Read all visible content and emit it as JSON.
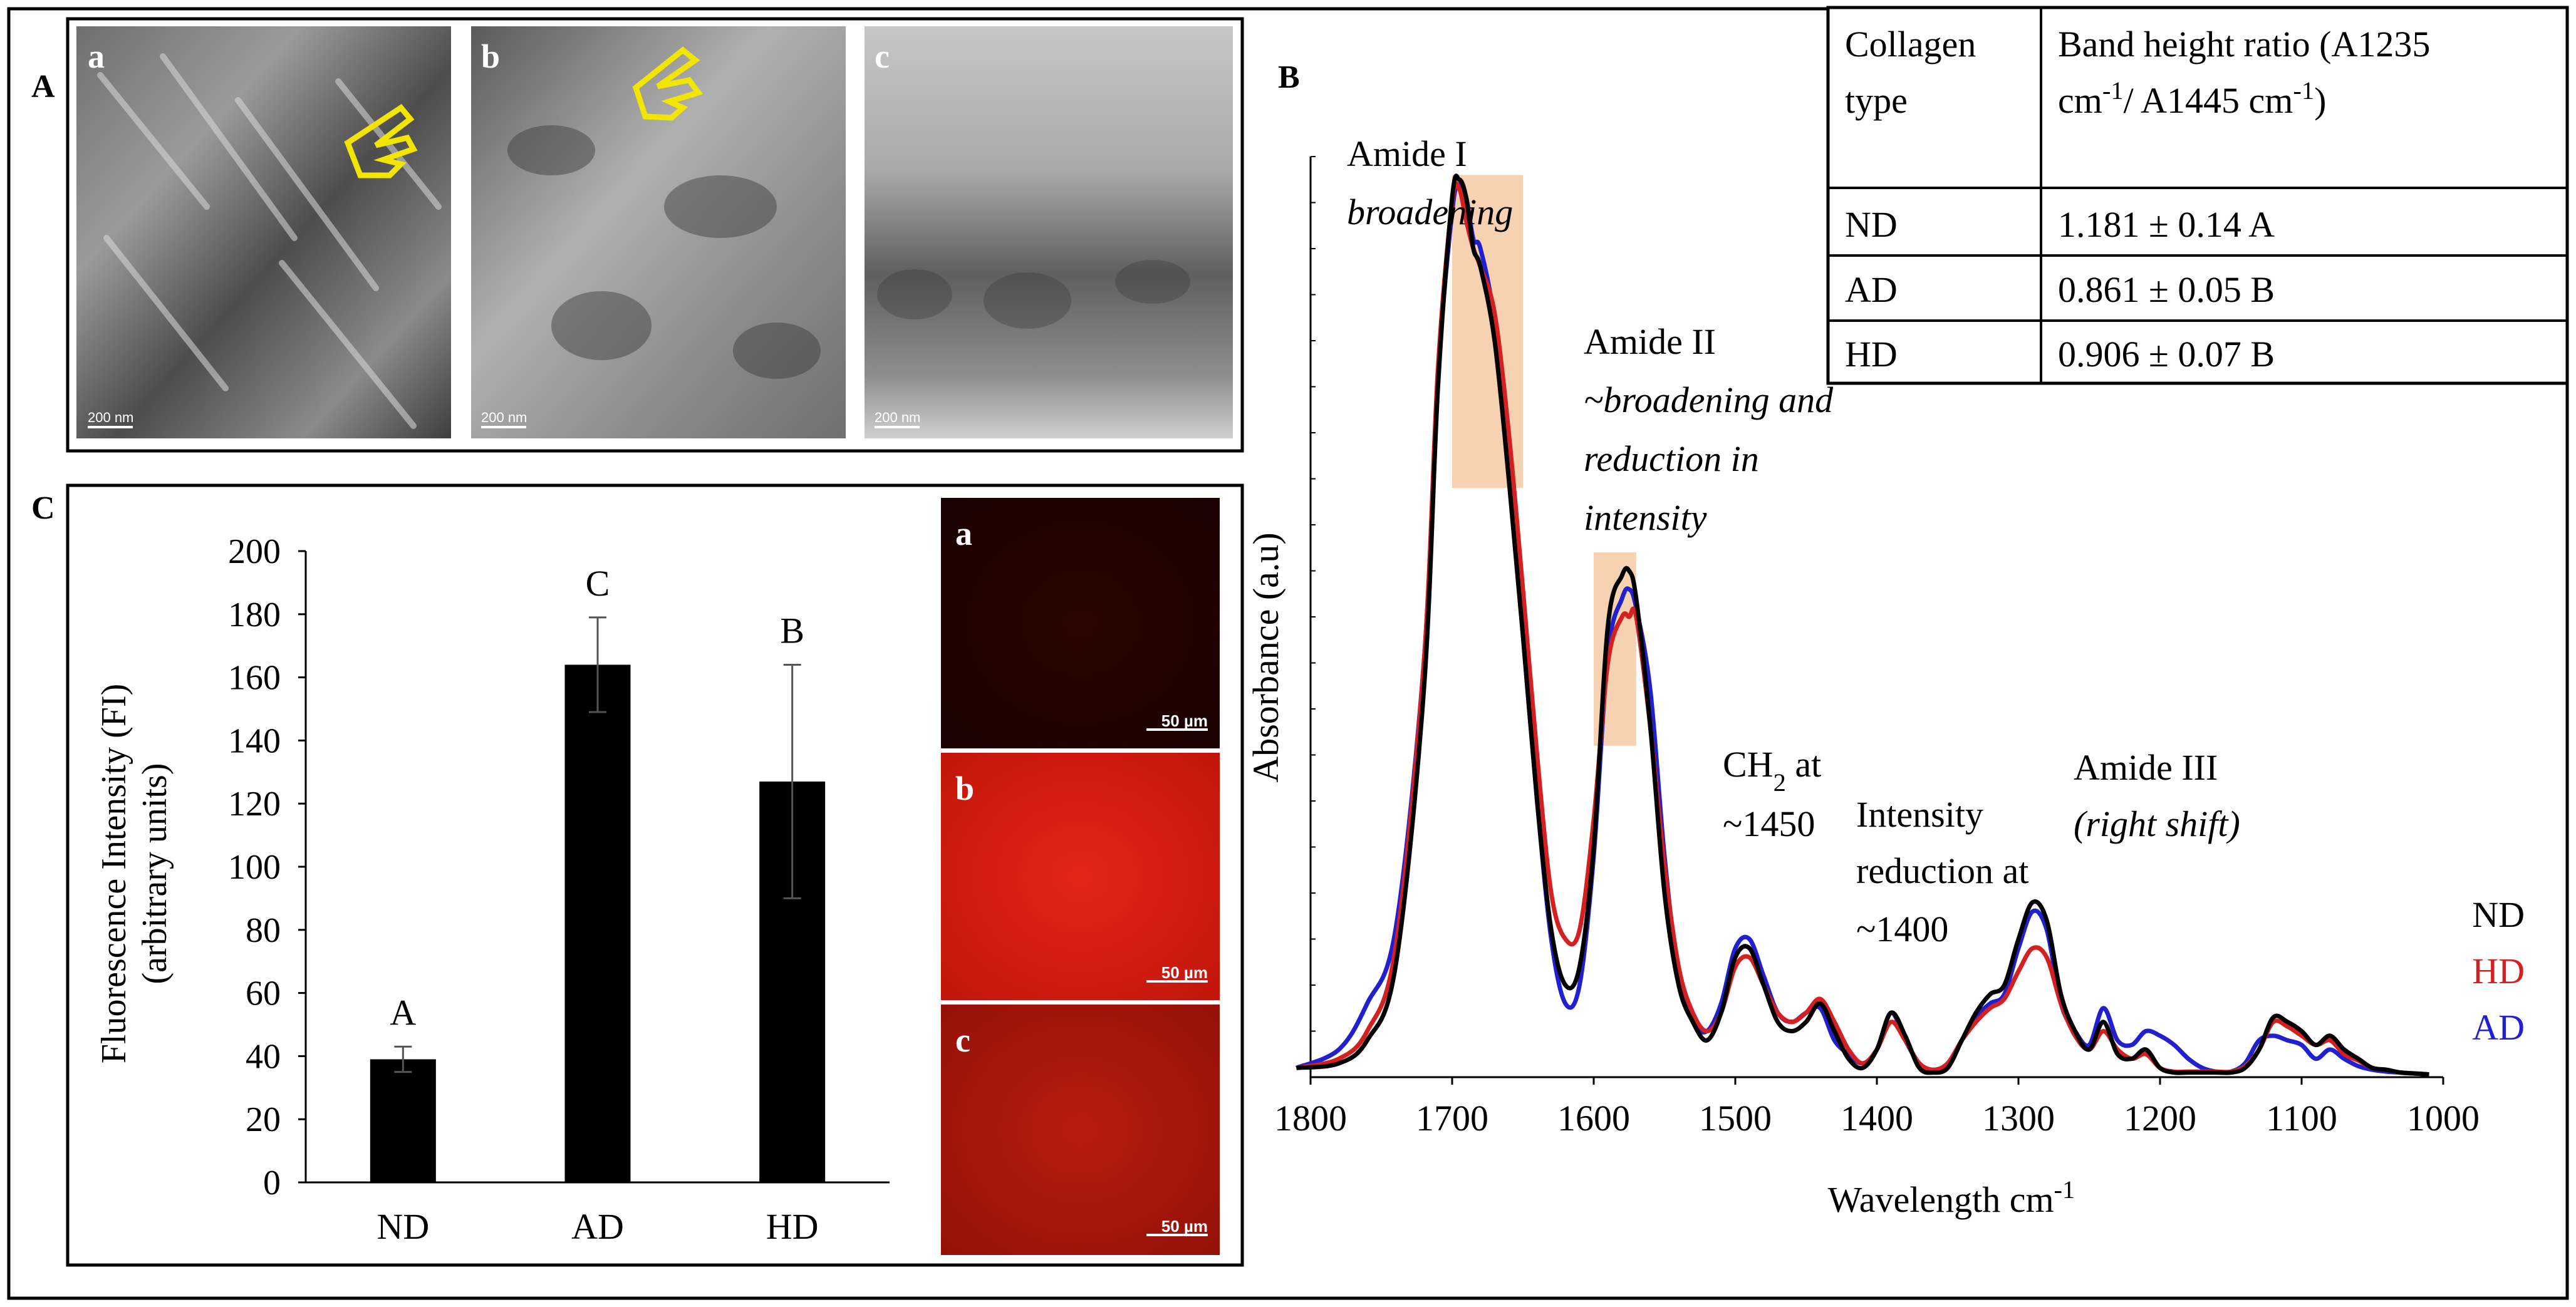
{
  "panel_labels": {
    "A": "A",
    "B": "B",
    "C": "C"
  },
  "panelA": {
    "subpanels": [
      {
        "label": "a",
        "scale": "200 nm"
      },
      {
        "label": "b",
        "scale": "200 nm"
      },
      {
        "label": "c",
        "scale": "200 nm"
      }
    ],
    "highlight_color": "#f2e600"
  },
  "panelC": {
    "micrographs": [
      {
        "label": "a",
        "scale": "50 µm"
      },
      {
        "label": "b",
        "scale": "50 µm"
      },
      {
        "label": "c",
        "scale": "50 µm"
      }
    ]
  },
  "table": {
    "header": [
      "Collagen type",
      "Band height ratio (A1235 cm-1/ A1445 cm-1)"
    ],
    "rows": [
      [
        "ND",
        "1.181 ± 0.14 A"
      ],
      [
        "AD",
        "0.861 ± 0.05 B"
      ],
      [
        "HD",
        "0.906 ± 0.07 B"
      ]
    ]
  },
  "annotations": {
    "amide1": {
      "title": "Amide I",
      "note": "broadening"
    },
    "amide2": {
      "title": "Amide II",
      "note_lines": [
        "~broadening and",
        "reduction in",
        "intensity"
      ]
    },
    "ch2": {
      "line1": "CH2 at",
      "line2": "~1450"
    },
    "intensity": {
      "lines": [
        "Intensity",
        "reduction at",
        "~1400"
      ]
    },
    "amide3": {
      "title": "Amide III",
      "note": "(right shift)"
    }
  },
  "chart_data": [
    {
      "type": "bar",
      "panel": "C",
      "categories": [
        "ND",
        "AD",
        "HD"
      ],
      "values": [
        39,
        164,
        127
      ],
      "errors": [
        4,
        15,
        37
      ],
      "letters": [
        "A",
        "C",
        "B"
      ],
      "ylabel_lines": [
        "Fluorescence Intensity (FI)",
        "(arbitrary units)"
      ],
      "ylim": [
        0,
        200
      ],
      "yticks": [
        0,
        20,
        40,
        60,
        80,
        100,
        120,
        140,
        160,
        180,
        200
      ],
      "bar_color": "#000000"
    },
    {
      "type": "line",
      "panel": "B",
      "xlabel": "Wavelength cm-1",
      "ylabel": "Absorbance (a.u)",
      "xlim": [
        1800,
        1000
      ],
      "ylim": [
        0,
        1.0
      ],
      "xticks": [
        1800,
        1700,
        1600,
        1500,
        1400,
        1300,
        1200,
        1100,
        1000
      ],
      "highlight_regions": [
        [
          1700,
          1650,
          0.64,
          0.98
        ],
        [
          1600,
          1570,
          0.36,
          0.57
        ]
      ],
      "series": [
        {
          "name": "ND",
          "color": "#000000",
          "x": [
            1810,
            1780,
            1760,
            1740,
            1720,
            1710,
            1700,
            1695,
            1690,
            1685,
            1680,
            1670,
            1660,
            1650,
            1640,
            1630,
            1620,
            1610,
            1600,
            1590,
            1580,
            1575,
            1570,
            1560,
            1550,
            1540,
            1530,
            1520,
            1510,
            1500,
            1490,
            1480,
            1470,
            1460,
            1450,
            1440,
            1430,
            1420,
            1410,
            1400,
            1390,
            1380,
            1370,
            1360,
            1350,
            1340,
            1330,
            1320,
            1310,
            1300,
            1290,
            1280,
            1270,
            1260,
            1250,
            1240,
            1230,
            1220,
            1210,
            1200,
            1190,
            1180,
            1170,
            1160,
            1150,
            1140,
            1130,
            1120,
            1110,
            1100,
            1090,
            1080,
            1070,
            1060,
            1050,
            1040,
            1030,
            1020,
            1010
          ],
          "y": [
            0.01,
            0.015,
            0.04,
            0.12,
            0.42,
            0.75,
            0.955,
            0.975,
            0.955,
            0.9,
            0.88,
            0.8,
            0.65,
            0.48,
            0.3,
            0.16,
            0.1,
            0.12,
            0.25,
            0.49,
            0.545,
            0.55,
            0.52,
            0.38,
            0.2,
            0.1,
            0.06,
            0.04,
            0.07,
            0.13,
            0.14,
            0.1,
            0.06,
            0.05,
            0.06,
            0.08,
            0.05,
            0.02,
            0.01,
            0.03,
            0.07,
            0.045,
            0.01,
            0.005,
            0.01,
            0.04,
            0.07,
            0.09,
            0.1,
            0.15,
            0.19,
            0.17,
            0.09,
            0.05,
            0.03,
            0.06,
            0.025,
            0.02,
            0.03,
            0.01,
            0.005,
            0.005,
            0.005,
            0.005,
            0.005,
            0.01,
            0.03,
            0.065,
            0.06,
            0.05,
            0.035,
            0.045,
            0.03,
            0.02,
            0.01,
            0.008,
            0.005,
            0.004,
            0.003
          ]
        },
        {
          "name": "HD",
          "color": "#d42020",
          "x": [
            1810,
            1780,
            1760,
            1740,
            1720,
            1710,
            1700,
            1695,
            1690,
            1685,
            1680,
            1670,
            1660,
            1650,
            1640,
            1630,
            1620,
            1610,
            1600,
            1590,
            1580,
            1575,
            1570,
            1560,
            1550,
            1540,
            1530,
            1520,
            1510,
            1500,
            1490,
            1480,
            1470,
            1460,
            1450,
            1440,
            1430,
            1420,
            1410,
            1400,
            1390,
            1380,
            1370,
            1360,
            1350,
            1340,
            1330,
            1320,
            1310,
            1300,
            1290,
            1280,
            1270,
            1260,
            1250,
            1240,
            1230,
            1220,
            1210,
            1200,
            1190,
            1180,
            1170,
            1160,
            1150,
            1140,
            1130,
            1120,
            1110,
            1100,
            1090,
            1080,
            1070,
            1060,
            1050,
            1040,
            1030,
            1020,
            1010
          ],
          "y": [
            0.01,
            0.02,
            0.05,
            0.14,
            0.45,
            0.77,
            0.95,
            0.965,
            0.93,
            0.9,
            0.88,
            0.83,
            0.7,
            0.53,
            0.35,
            0.2,
            0.15,
            0.16,
            0.28,
            0.45,
            0.5,
            0.5,
            0.5,
            0.38,
            0.23,
            0.12,
            0.07,
            0.05,
            0.07,
            0.12,
            0.13,
            0.1,
            0.07,
            0.06,
            0.07,
            0.085,
            0.06,
            0.03,
            0.015,
            0.03,
            0.06,
            0.04,
            0.015,
            0.008,
            0.015,
            0.04,
            0.06,
            0.075,
            0.085,
            0.115,
            0.14,
            0.13,
            0.08,
            0.045,
            0.03,
            0.05,
            0.03,
            0.02,
            0.025,
            0.01,
            0.006,
            0.006,
            0.006,
            0.006,
            0.006,
            0.012,
            0.03,
            0.06,
            0.055,
            0.045,
            0.035,
            0.04,
            0.025,
            0.018,
            0.01,
            0.008,
            0.005,
            0.004,
            0.003
          ]
        },
        {
          "name": "AD",
          "color": "#2020d0",
          "x": [
            1810,
            1780,
            1760,
            1740,
            1720,
            1710,
            1700,
            1695,
            1690,
            1685,
            1680,
            1670,
            1660,
            1650,
            1640,
            1630,
            1620,
            1610,
            1600,
            1590,
            1580,
            1575,
            1570,
            1560,
            1550,
            1540,
            1530,
            1520,
            1510,
            1500,
            1490,
            1480,
            1470,
            1460,
            1450,
            1440,
            1430,
            1420,
            1410,
            1400,
            1390,
            1380,
            1370,
            1360,
            1350,
            1340,
            1330,
            1320,
            1310,
            1300,
            1290,
            1280,
            1270,
            1260,
            1250,
            1240,
            1230,
            1220,
            1210,
            1200,
            1190,
            1180,
            1170,
            1160,
            1150,
            1140,
            1130,
            1120,
            1110,
            1100,
            1090,
            1080,
            1070,
            1060,
            1050,
            1040,
            1030,
            1020,
            1010
          ],
          "y": [
            0.01,
            0.03,
            0.08,
            0.16,
            0.45,
            0.76,
            0.94,
            0.97,
            0.955,
            0.91,
            0.9,
            0.82,
            0.66,
            0.48,
            0.3,
            0.15,
            0.08,
            0.1,
            0.24,
            0.46,
            0.52,
            0.53,
            0.51,
            0.42,
            0.24,
            0.11,
            0.06,
            0.05,
            0.08,
            0.14,
            0.15,
            0.11,
            0.07,
            0.06,
            0.07,
            0.075,
            0.04,
            0.025,
            0.015,
            0.03,
            0.07,
            0.04,
            0.015,
            0.008,
            0.015,
            0.04,
            0.065,
            0.08,
            0.09,
            0.14,
            0.18,
            0.16,
            0.08,
            0.05,
            0.035,
            0.075,
            0.04,
            0.035,
            0.05,
            0.045,
            0.035,
            0.02,
            0.01,
            0.006,
            0.006,
            0.015,
            0.04,
            0.045,
            0.04,
            0.035,
            0.02,
            0.03,
            0.02,
            0.012,
            0.008,
            0.006,
            0.005,
            0.004,
            0.003
          ]
        }
      ]
    }
  ]
}
